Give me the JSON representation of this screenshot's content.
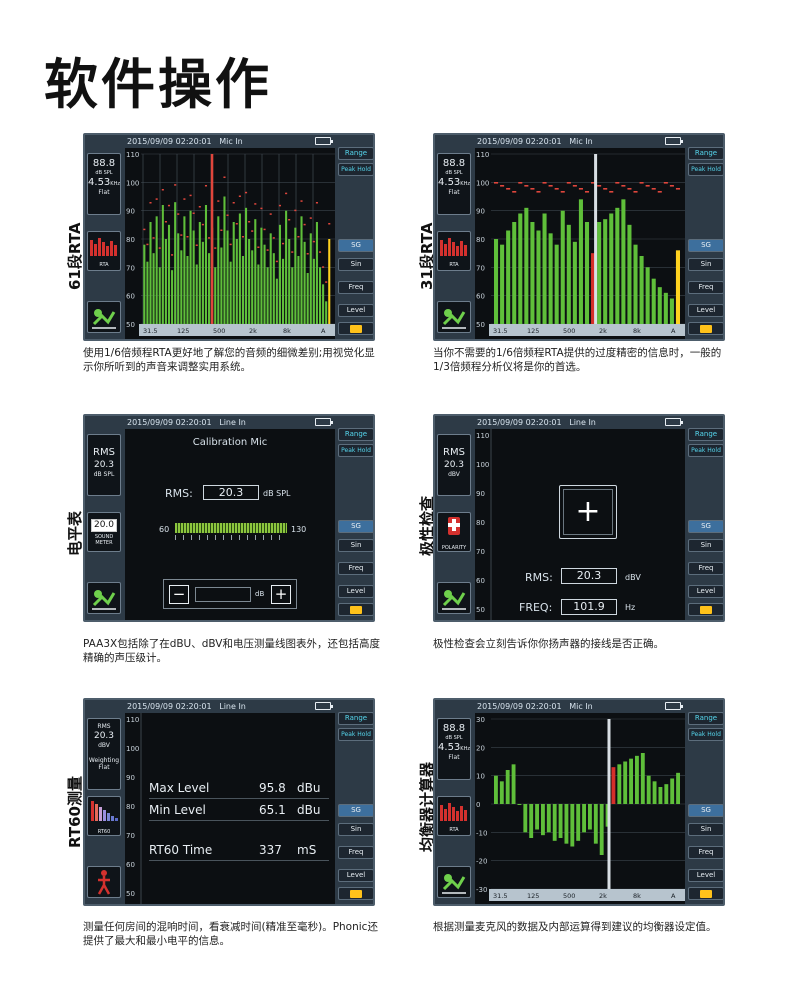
{
  "page_title": "软件操作",
  "common": {
    "timestamp": "2015/09/09   02:20:01",
    "range": "Range",
    "peak_hold": "Peak Hold",
    "sg": "SG",
    "sin": "Sin",
    "freq": "Freq",
    "level": "Level"
  },
  "panels": {
    "rta61": {
      "side_label": "61段RTA",
      "source": "Mic In",
      "readout_level": "88.8",
      "readout_level_unit": "dB SPL",
      "readout_freq": "4.53",
      "readout_freq_unit": "KHz",
      "readout_weight": "Flat",
      "mode_label": "RTA",
      "y_ticks": [
        "110",
        "100",
        "90",
        "80",
        "70",
        "60",
        "50"
      ],
      "x_ticks": [
        "31.5",
        "125",
        "500",
        "2k",
        "8k",
        "A"
      ],
      "caption": "使用1/6倍频程RTA更好地了解您的音频的细微差别;用视觉化显示你所听到的声音来调整实用系统。"
    },
    "rta31": {
      "side_label": "31段RTA",
      "source": "Mic In",
      "readout_level": "88.8",
      "readout_level_unit": "dB SPL",
      "readout_freq": "4.53",
      "readout_freq_unit": "KHz",
      "readout_weight": "Flat",
      "mode_label": "RTA",
      "y_ticks": [
        "110",
        "100",
        "90",
        "80",
        "70",
        "60",
        "50"
      ],
      "x_ticks": [
        "31.5",
        "125",
        "500",
        "2k",
        "8k",
        "A"
      ],
      "caption": "当你不需要的1/6倍频程RTA提供的过度精密的信息时，一般的1/3倍频程分析仪将是你的首选。"
    },
    "spl": {
      "side_label": "电平表",
      "source": "Line In",
      "rms_label": "RMS",
      "rms_value": "20.3",
      "rms_unit": "dB SPL",
      "meter_value": "20.0",
      "meter_label": "SOUND METER",
      "screen_title": "Calibration Mic",
      "screen_rms_label": "RMS:",
      "screen_rms_value": "20.3",
      "screen_rms_unit": "dB SPL",
      "bar_min": "60",
      "bar_max": "130",
      "minus": "−",
      "plus": "+",
      "db_unit": "dB",
      "caption": "PAA3X包括除了在dBU、dBV和电压测量线图表外，还包括高度精确的声压级计。"
    },
    "polarity": {
      "side_label": "极性检查",
      "source": "Line In",
      "rms_label": "RMS",
      "rms_value": "20.3",
      "rms_unit": "dBV",
      "mode_label": "POLARITY",
      "y_ticks": [
        "110",
        "100",
        "90",
        "80",
        "70",
        "60",
        "50"
      ],
      "plus": "+",
      "rms_row_label": "RMS:",
      "rms_row_value": "20.3",
      "rms_row_unit": "dBV",
      "freq_row_label": "FREQ:",
      "freq_row_value": "101.9",
      "freq_row_unit": "Hz",
      "caption": "极性检查会立刻告诉你你扬声器的接线是否正确。"
    },
    "rt60": {
      "side_label": "RT60测量",
      "source": "Line In",
      "rms_label": "RMS",
      "rms_value": "20.3",
      "rms_unit": "dBV",
      "weighting_label": "Weighting",
      "weighting_value": "Flat",
      "mode_label": "RT60",
      "y_ticks": [
        "110",
        "100",
        "90",
        "80",
        "70",
        "60",
        "50"
      ],
      "rows": [
        {
          "label": "Max Level",
          "value": "95.8",
          "unit": "dBu"
        },
        {
          "label": "Min Level",
          "value": "65.1",
          "unit": "dBu"
        },
        {
          "label": "RT60 Time",
          "value": "337",
          "unit": "mS"
        }
      ],
      "caption": "测量任何房间的混响时间，看衰减时间(精准至毫秒)。Phonic还提供了最大和最小电平的信息。"
    },
    "eq": {
      "side_label": "均衡器计算器",
      "source": "Mic In",
      "readout_level": "88.8",
      "readout_level_unit": "dB SPL",
      "readout_freq": "4.53",
      "readout_freq_unit": "KHz",
      "readout_weight": "Flat",
      "mode_label": "RTA",
      "y_ticks": [
        "30",
        "20",
        "10",
        "0",
        "-10",
        "-20",
        "-30"
      ],
      "x_ticks": [
        "31.5",
        "125",
        "500",
        "2k",
        "8k",
        "A"
      ],
      "caption": "根据测量麦克风的数据及内部运算得到建议的均衡器设定值。"
    }
  },
  "chart_data": [
    {
      "type": "bar",
      "title": "",
      "ylim": [
        50,
        110
      ],
      "values": [
        78,
        72,
        86,
        75,
        88,
        70,
        92,
        80,
        85,
        69,
        93,
        82,
        76,
        88,
        74,
        90,
        83,
        71,
        86,
        79,
        92,
        75,
        84,
        70,
        88,
        77,
        95,
        83,
        72,
        86,
        80,
        89,
        74,
        91,
        80,
        76,
        87,
        71,
        84,
        78,
        70,
        82,
        75,
        66,
        85,
        73,
        90,
        80,
        70,
        84,
        74,
        88,
        79,
        68,
        82,
        73,
        86,
        70,
        64,
        58,
        80
      ]
    },
    {
      "type": "bar",
      "title": "",
      "ylim": [
        50,
        110
      ],
      "values": [
        80,
        78,
        83,
        86,
        89,
        91,
        86,
        83,
        89,
        82,
        78,
        90,
        85,
        79,
        94,
        86,
        75,
        86,
        87,
        89,
        91,
        94,
        85,
        78,
        74,
        70,
        66,
        63,
        61,
        59,
        76
      ]
    },
    {
      "type": "bar",
      "title": "",
      "ylim": [
        -30,
        30
      ],
      "values": [
        10,
        8,
        12,
        14,
        0,
        -10,
        -12,
        -9,
        -11,
        -10,
        -13,
        -12,
        -14,
        -15,
        -13,
        -10,
        -9,
        -14,
        -18,
        -8,
        13,
        14,
        15,
        16,
        17,
        18,
        10,
        8,
        6,
        7,
        9,
        11
      ]
    }
  ]
}
